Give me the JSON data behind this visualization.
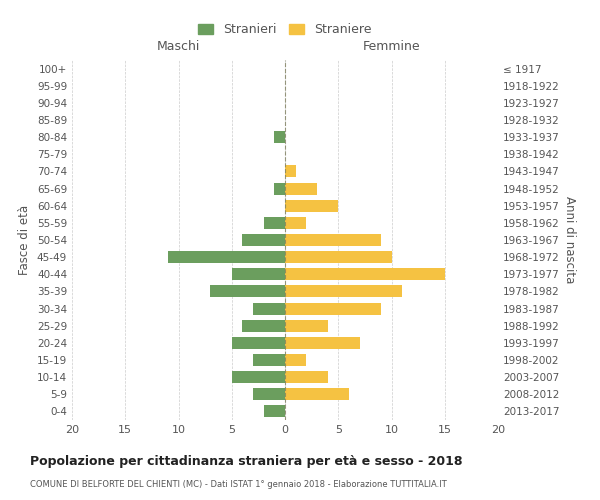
{
  "age_groups": [
    "0-4",
    "5-9",
    "10-14",
    "15-19",
    "20-24",
    "25-29",
    "30-34",
    "35-39",
    "40-44",
    "45-49",
    "50-54",
    "55-59",
    "60-64",
    "65-69",
    "70-74",
    "75-79",
    "80-84",
    "85-89",
    "90-94",
    "95-99",
    "100+"
  ],
  "birth_years": [
    "2013-2017",
    "2008-2012",
    "2003-2007",
    "1998-2002",
    "1993-1997",
    "1988-1992",
    "1983-1987",
    "1978-1982",
    "1973-1977",
    "1968-1972",
    "1963-1967",
    "1958-1962",
    "1953-1957",
    "1948-1952",
    "1943-1947",
    "1938-1942",
    "1933-1937",
    "1928-1932",
    "1923-1927",
    "1918-1922",
    "≤ 1917"
  ],
  "males": [
    2,
    3,
    5,
    3,
    5,
    4,
    3,
    7,
    5,
    11,
    4,
    2,
    0,
    1,
    0,
    0,
    1,
    0,
    0,
    0,
    0
  ],
  "females": [
    0,
    6,
    4,
    2,
    7,
    4,
    9,
    11,
    15,
    10,
    9,
    2,
    5,
    3,
    1,
    0,
    0,
    0,
    0,
    0,
    0
  ],
  "male_color": "#6b9e5e",
  "female_color": "#f5c242",
  "title": "Popolazione per cittadinanza straniera per età e sesso - 2018",
  "subtitle": "COMUNE DI BELFORTE DEL CHIENTI (MC) - Dati ISTAT 1° gennaio 2018 - Elaborazione TUTTITALIA.IT",
  "xlabel_left": "Maschi",
  "xlabel_right": "Femmine",
  "ylabel_left": "Fasce di età",
  "ylabel_right": "Anni di nascita",
  "legend_male": "Stranieri",
  "legend_female": "Straniere",
  "xlim": 20,
  "background_color": "#ffffff",
  "grid_color": "#cccccc",
  "text_color": "#555555"
}
